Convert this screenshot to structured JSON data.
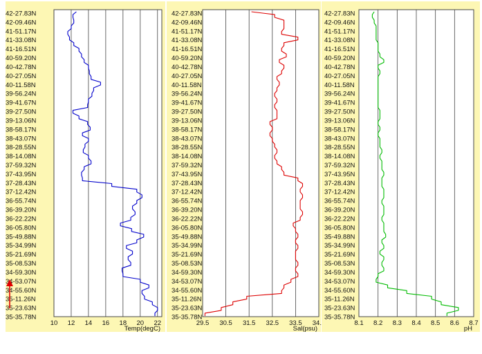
{
  "chart_data": [
    {
      "type": "line",
      "xlabel": "Temp(degC)",
      "xlim": [
        10,
        22.5
      ],
      "xticks": [
        10,
        12,
        14,
        16,
        18,
        20,
        22
      ],
      "ylabels": [
        "42-27.83N",
        "42-09.46N",
        "41-51.17N",
        "41-33.08N",
        "41-16.51N",
        "40-59.20N",
        "40-42.78N",
        "40-27.05N",
        "40-11.58N",
        "39-56.24N",
        "39-41.67N",
        "39-27.50N",
        "39-13.06N",
        "38-58.17N",
        "38-43.07N",
        "38-28.55N",
        "38-14.08N",
        "37-59.32N",
        "37-43.95N",
        "37-28.43N",
        "37-12.42N",
        "36-55.74N",
        "36-39.20N",
        "36-22.22N",
        "36-05.80N",
        "35-49.88N",
        "35-34.99N",
        "35-21.69N",
        "35-08.53N",
        "34-59.30N",
        "34-53.07N",
        "34-55.60N",
        "35-11.26N",
        "35-23.63N",
        "35-35.78N"
      ],
      "series": [
        {
          "color": "#0000cc",
          "values": [
            12.6,
            12.2,
            12.3,
            12.0,
            11.6,
            11.8,
            12.3,
            12.9,
            13.2,
            13.5,
            14.0,
            14.1,
            14.3,
            15.4,
            14.6,
            14.4,
            14.0,
            13.9,
            12.2,
            12.9,
            13.9,
            14.2,
            13.3,
            14.0,
            13.6,
            13.4,
            14.0,
            14.3,
            13.5,
            13.2,
            13.3,
            16.7,
            19.6,
            20.2,
            19.6,
            19.1,
            19.4,
            18.9,
            17.7,
            19.0,
            20.4,
            19.6,
            18.4,
            19.1,
            18.6,
            18.9,
            17.9,
            18.0,
            20.0,
            21.0,
            20.2,
            20.5,
            21.4,
            22.0,
            21.7
          ]
        }
      ]
    },
    {
      "type": "line",
      "xlabel": "Sal(psu)",
      "xlim": [
        29.5,
        34.5
      ],
      "xticks": [
        29.5,
        30.5,
        31.5,
        32.5,
        33.5,
        34.5
      ],
      "ylabels": [
        "42-27.83N",
        "42-09.46N",
        "41-51.17N",
        "41-33.08N",
        "41-16.51N",
        "40-59.20N",
        "40-42.78N",
        "40-27.05N",
        "40-11.58N",
        "39-56.24N",
        "39-41.67N",
        "39-27.50N",
        "39-13.06N",
        "38-58.17N",
        "38-43.07N",
        "38-28.55N",
        "38-14.08N",
        "37-59.32N",
        "37-43.95N",
        "37-28.43N",
        "37-12.42N",
        "36-55.74N",
        "36-39.20N",
        "36-22.22N",
        "36-05.80N",
        "35-49.88N",
        "35-34.99N",
        "35-21.69N",
        "35-08.53N",
        "34-59.30N",
        "34-53.07N",
        "34-55.60N",
        "35-11.26N",
        "35-23.63N",
        "35-35.78N"
      ],
      "series": [
        {
          "color": "#dd0000",
          "values": [
            31.6,
            32.6,
            33.0,
            33.0,
            32.9,
            33.6,
            33.0,
            32.9,
            33.1,
            32.8,
            33.0,
            32.9,
            32.7,
            32.8,
            32.7,
            32.6,
            32.7,
            32.6,
            32.7,
            32.7,
            32.4,
            32.5,
            32.4,
            32.5,
            32.6,
            32.7,
            32.6,
            32.7,
            32.9,
            33.0,
            33.6,
            33.8,
            33.7,
            33.8,
            33.7,
            33.7,
            33.8,
            33.7,
            33.4,
            33.5,
            33.6,
            33.5,
            33.6,
            33.5,
            33.5,
            33.6,
            33.5,
            33.6,
            33.3,
            33.0,
            32.9,
            31.4,
            30.8,
            30.3,
            29.6
          ]
        }
      ]
    },
    {
      "type": "line",
      "xlabel": "pH",
      "xlim": [
        8.1,
        8.7
      ],
      "xticks": [
        8.1,
        8.2,
        8.3,
        8.4,
        8.5,
        8.6,
        8.7
      ],
      "ylabels": [
        "42-27.83N",
        "42-09.46N",
        "41-51.17N",
        "41-33.08N",
        "41-16.51N",
        "40-59.20N",
        "40-42.78N",
        "40-27.05N",
        "40-11.58N",
        "39-56.24N",
        "39-41.67N",
        "39-27.50N",
        "39-13.06N",
        "38-58.17N",
        "38-43.07N",
        "38-28.55N",
        "38-14.08N",
        "37-59.32N",
        "37-43.95N",
        "37-28.43N",
        "37-12.42N",
        "36-55.74N",
        "36-39.20N",
        "36-22.22N",
        "36-05.80N",
        "35-49.88N",
        "35-34.99N",
        "35-21.69N",
        "35-08.53N",
        "34-59.30N",
        "34-53.07N",
        "34-55.60N",
        "35-11.26N",
        "35-23.63N",
        "35-35.78N"
      ],
      "series": [
        {
          "color": "#00bb00",
          "values": [
            8.18,
            8.17,
            8.18,
            8.19,
            8.19,
            8.19,
            8.2,
            8.2,
            8.21,
            8.23,
            8.2,
            8.21,
            8.2,
            8.2,
            8.2,
            8.2,
            8.2,
            8.2,
            8.21,
            8.21,
            8.2,
            8.21,
            8.2,
            8.21,
            8.21,
            8.22,
            8.21,
            8.22,
            8.22,
            8.23,
            8.22,
            8.22,
            8.23,
            8.23,
            8.22,
            8.23,
            8.23,
            8.22,
            8.23,
            8.23,
            8.24,
            8.22,
            8.23,
            8.21,
            8.23,
            8.22,
            8.23,
            8.2,
            8.19,
            8.25,
            8.35,
            8.48,
            8.53,
            8.62,
            8.56
          ]
        }
      ]
    }
  ]
}
